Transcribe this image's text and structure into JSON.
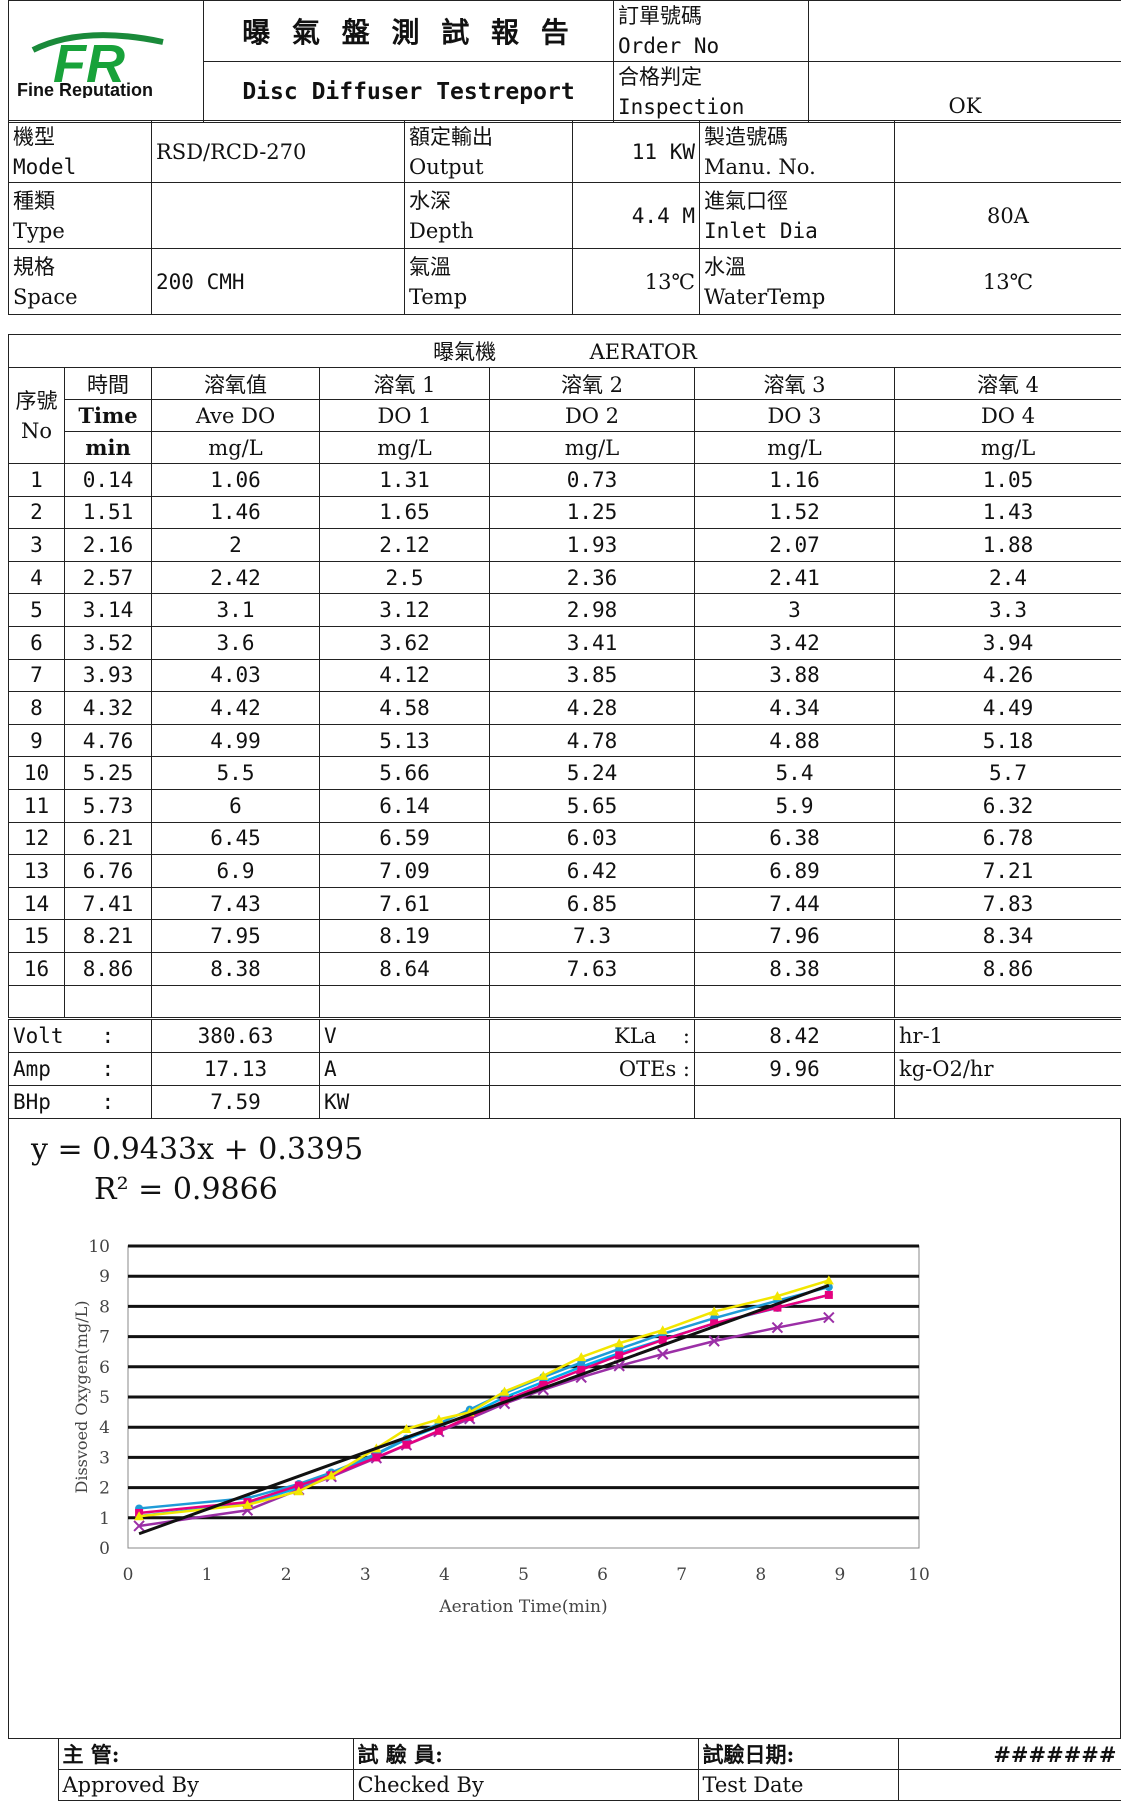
{
  "header": {
    "title_cn": "曝 氣 盤 測 試 報 告",
    "title_en": "Disc Diffuser Testreport",
    "logo_text": "FR",
    "company": "Fine Reputation",
    "order_no_cn": "訂單號碼",
    "order_no_en": "Order No",
    "order_no_value": "",
    "inspection_cn": "合格判定",
    "inspection_en": "Inspection",
    "inspection_value": "OK"
  },
  "specs": {
    "model_cn": "機型",
    "model_en": "Model",
    "model_value": "RSD/RCD-270",
    "output_cn": "額定輸出",
    "output_en": "Output",
    "output_value": "11 KW",
    "manu_cn": "製造號碼",
    "manu_en": "Manu. No.",
    "manu_value": "",
    "type_cn": "種類",
    "type_en": "Type",
    "type_value": "",
    "depth_cn": "水深",
    "depth_en": "Depth",
    "depth_value": "4.4 M",
    "inlet_cn": "進氣口徑",
    "inlet_en": "Inlet Dia",
    "inlet_value": "80A",
    "space_cn": "規格",
    "space_en": "Space",
    "space_value": "200 CMH",
    "temp_cn": "氣溫",
    "temp_en": "Temp",
    "temp_value": "13℃",
    "water_cn": "水溫",
    "water_en": "WaterTemp",
    "water_value": "13℃"
  },
  "aerator_title_cn": "曝氣機",
  "aerator_title_en": "AERATOR",
  "table_headers": {
    "no_cn": "序號",
    "no_en": "No",
    "time_cn": "時間",
    "time_en": "Time",
    "time_unit": "min",
    "ave_cn": "溶氧值",
    "ave_en": "Ave DO",
    "ave_unit": "mg/L",
    "do1_cn": "溶氧 1",
    "do1_en": "DO 1",
    "do1_unit": "mg/L",
    "do2_cn": "溶氧 2",
    "do2_en": "DO 2",
    "do2_unit": "mg/L",
    "do3_cn": "溶氧 3",
    "do3_en": "DO 3",
    "do3_unit": "mg/L",
    "do4_cn": "溶氧 4",
    "do4_en": "DO 4",
    "do4_unit": "mg/L"
  },
  "rows": [
    [
      "1",
      "0.14",
      "1.06",
      "1.31",
      "0.73",
      "1.16",
      "1.05"
    ],
    [
      "2",
      "1.51",
      "1.46",
      "1.65",
      "1.25",
      "1.52",
      "1.43"
    ],
    [
      "3",
      "2.16",
      "2",
      "2.12",
      "1.93",
      "2.07",
      "1.88"
    ],
    [
      "4",
      "2.57",
      "2.42",
      "2.5",
      "2.36",
      "2.41",
      "2.4"
    ],
    [
      "5",
      "3.14",
      "3.1",
      "3.12",
      "2.98",
      "3",
      "3.3"
    ],
    [
      "6",
      "3.52",
      "3.6",
      "3.62",
      "3.41",
      "3.42",
      "3.94"
    ],
    [
      "7",
      "3.93",
      "4.03",
      "4.12",
      "3.85",
      "3.88",
      "4.26"
    ],
    [
      "8",
      "4.32",
      "4.42",
      "4.58",
      "4.28",
      "4.34",
      "4.49"
    ],
    [
      "9",
      "4.76",
      "4.99",
      "5.13",
      "4.78",
      "4.88",
      "5.18"
    ],
    [
      "10",
      "5.25",
      "5.5",
      "5.66",
      "5.24",
      "5.4",
      "5.7"
    ],
    [
      "11",
      "5.73",
      "6",
      "6.14",
      "5.65",
      "5.9",
      "6.32"
    ],
    [
      "12",
      "6.21",
      "6.45",
      "6.59",
      "6.03",
      "6.38",
      "6.78"
    ],
    [
      "13",
      "6.76",
      "6.9",
      "7.09",
      "6.42",
      "6.89",
      "7.21"
    ],
    [
      "14",
      "7.41",
      "7.43",
      "7.61",
      "6.85",
      "7.44",
      "7.83"
    ],
    [
      "15",
      "8.21",
      "7.95",
      "8.19",
      "7.3",
      "7.96",
      "8.34"
    ],
    [
      "16",
      "8.86",
      "8.38",
      "8.64",
      "7.63",
      "8.38",
      "8.86"
    ]
  ],
  "summary": {
    "volt_label": "Volt",
    "volt_value": "380.63",
    "volt_unit": "V",
    "amp_label": "Amp",
    "amp_value": "17.13",
    "amp_unit": "A",
    "bhp_label": "BHp",
    "bhp_value": "7.59",
    "bhp_unit": "KW",
    "colon": ":",
    "kla_label": "KLa",
    "kla_value": "8.42",
    "kla_unit": "hr-1",
    "otes_label": "OTEs",
    "otes_value": "9.96",
    "otes_unit": "kg-O2/hr"
  },
  "equation": "y = 0.9433x + 0.3395",
  "r_squared": "R² = 0.9866",
  "chart_data": {
    "type": "line",
    "xlabel": "Aeration Time(min)",
    "ylabel": "Dissvoed Oxygen(mg/L)",
    "xlim": [
      0,
      10
    ],
    "ylim": [
      0,
      10
    ],
    "x_ticks": [
      "0",
      "1",
      "2",
      "3",
      "4",
      "5",
      "6",
      "7",
      "8",
      "9",
      "10"
    ],
    "y_ticks": [
      "0",
      "1",
      "2",
      "3",
      "4",
      "5",
      "6",
      "7",
      "8",
      "9",
      "10"
    ],
    "grid": "horizontal",
    "x": [
      0.14,
      1.51,
      2.16,
      2.57,
      3.14,
      3.52,
      3.93,
      4.32,
      4.76,
      5.25,
      5.73,
      6.21,
      6.76,
      7.41,
      8.21,
      8.86
    ],
    "series": [
      {
        "color": "#00b0f0",
        "values": [
          1.06,
          1.46,
          2,
          2.42,
          3.1,
          3.6,
          4.03,
          4.42,
          4.99,
          5.5,
          6,
          6.45,
          6.9,
          7.43,
          7.95,
          8.38
        ]
      },
      {
        "color": "#1f9bd7",
        "values": [
          1.31,
          1.65,
          2.12,
          2.5,
          3.12,
          3.62,
          4.12,
          4.58,
          5.13,
          5.66,
          6.14,
          6.59,
          7.09,
          7.61,
          8.19,
          8.64
        ]
      },
      {
        "color": "#9b2fa6",
        "values": [
          0.73,
          1.25,
          1.93,
          2.36,
          2.98,
          3.41,
          3.85,
          4.28,
          4.78,
          5.24,
          5.65,
          6.03,
          6.42,
          6.85,
          7.3,
          7.63
        ]
      },
      {
        "color": "#e6007e",
        "values": [
          1.16,
          1.52,
          2.07,
          2.41,
          3,
          3.42,
          3.88,
          4.34,
          4.88,
          5.4,
          5.9,
          6.38,
          6.89,
          7.44,
          7.96,
          8.38
        ]
      },
      {
        "color": "#f2e600",
        "values": [
          1.05,
          1.43,
          1.88,
          2.4,
          3.3,
          3.94,
          4.26,
          4.49,
          5.18,
          5.7,
          6.32,
          6.78,
          7.21,
          7.83,
          8.34,
          8.86
        ]
      }
    ],
    "trendline": {
      "slope": 0.9433,
      "intercept": 0.3395,
      "color": "#111111"
    }
  },
  "signatures": {
    "approved_cn": "主 管:",
    "approved_en": "Approved By",
    "checked_cn": "試 驗 員:",
    "checked_en": "Checked By",
    "date_cn": "試驗日期:",
    "date_en": "Test Date",
    "date_value": "#######"
  }
}
